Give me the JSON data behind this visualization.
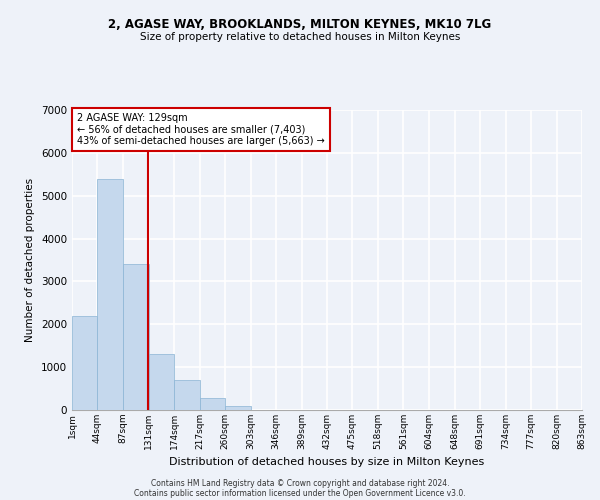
{
  "title1": "2, AGASE WAY, BROOKLANDS, MILTON KEYNES, MK10 7LG",
  "title2": "Size of property relative to detached houses in Milton Keynes",
  "xlabel": "Distribution of detached houses by size in Milton Keynes",
  "ylabel": "Number of detached properties",
  "footer1": "Contains HM Land Registry data © Crown copyright and database right 2024.",
  "footer2": "Contains public sector information licensed under the Open Government Licence v3.0.",
  "annotation_line1": "2 AGASE WAY: 129sqm",
  "annotation_line2": "← 56% of detached houses are smaller (7,403)",
  "annotation_line3": "43% of semi-detached houses are larger (5,663) →",
  "property_size": 129,
  "bin_edges": [
    1,
    44,
    87,
    131,
    174,
    217,
    260,
    303,
    346,
    389,
    432,
    475,
    518,
    561,
    604,
    648,
    691,
    734,
    777,
    820,
    863
  ],
  "bin_labels": [
    "1sqm",
    "44sqm",
    "87sqm",
    "131sqm",
    "174sqm",
    "217sqm",
    "260sqm",
    "303sqm",
    "346sqm",
    "389sqm",
    "432sqm",
    "475sqm",
    "518sqm",
    "561sqm",
    "604sqm",
    "648sqm",
    "691sqm",
    "734sqm",
    "777sqm",
    "820sqm",
    "863sqm"
  ],
  "bar_heights": [
    2200,
    5400,
    3400,
    1300,
    700,
    280,
    100,
    0,
    0,
    0,
    0,
    0,
    0,
    0,
    0,
    0,
    0,
    0,
    0,
    0
  ],
  "bar_color": "#c5d8ed",
  "bar_edge_color": "#8ab4d4",
  "red_line_color": "#cc0000",
  "background_color": "#eef2f9",
  "grid_color": "#ffffff",
  "annotation_box_color": "#ffffff",
  "annotation_border_color": "#cc0000",
  "ylim": [
    0,
    7000
  ],
  "yticks": [
    0,
    1000,
    2000,
    3000,
    4000,
    5000,
    6000,
    7000
  ]
}
